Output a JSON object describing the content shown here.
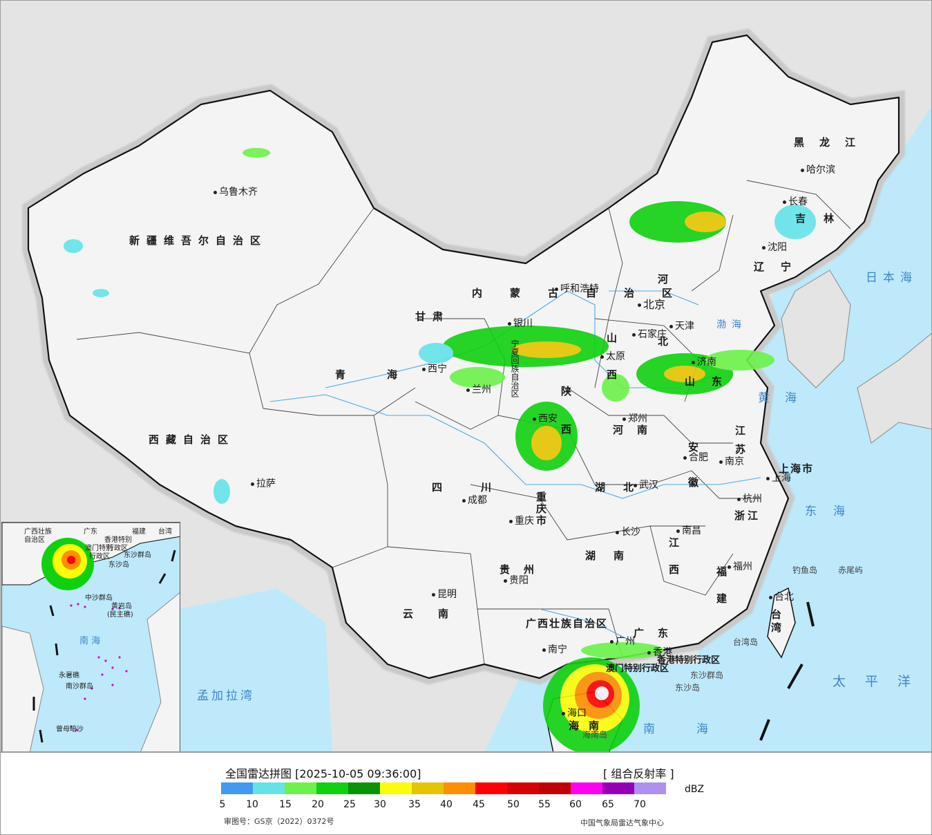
{
  "map": {
    "provinces": [
      {
        "id": "xinjiang",
        "name": "新疆维吾尔自治区"
      },
      {
        "id": "xizang",
        "name": "西藏自治区"
      },
      {
        "id": "qinghai",
        "name": "青海"
      },
      {
        "id": "gansu",
        "name": "甘肃"
      },
      {
        "id": "neimenggu",
        "name": "内蒙古自治区"
      },
      {
        "id": "heilongjiang",
        "name": "黑龙江"
      },
      {
        "id": "jilin",
        "name": "吉林"
      },
      {
        "id": "liaoning",
        "name": "辽宁"
      },
      {
        "id": "hebei",
        "name": "河北"
      },
      {
        "id": "shanxi",
        "name": "山西"
      },
      {
        "id": "shaanxi",
        "name": "陕西"
      },
      {
        "id": "henan",
        "name": "河南"
      },
      {
        "id": "shandong",
        "name": "山东"
      },
      {
        "id": "jiangsu",
        "name": "江苏"
      },
      {
        "id": "anhui",
        "name": "安徽"
      },
      {
        "id": "hubei",
        "name": "湖北"
      },
      {
        "id": "sichuan",
        "name": "四川"
      },
      {
        "id": "chongqing",
        "name": "重庆市"
      },
      {
        "id": "guizhou",
        "name": "贵州"
      },
      {
        "id": "yunnan",
        "name": "云南"
      },
      {
        "id": "hunan",
        "name": "湖南"
      },
      {
        "id": "jiangxi",
        "name": "江西"
      },
      {
        "id": "zhejiang",
        "name": "浙江"
      },
      {
        "id": "fujian",
        "name": "福建"
      },
      {
        "id": "guangxi",
        "name": "广西壮族自治区"
      },
      {
        "id": "guangdong",
        "name": "广东"
      },
      {
        "id": "hainan",
        "name": "海南"
      },
      {
        "id": "taiwan",
        "name": "台湾"
      },
      {
        "id": "shanghai",
        "name": "上海市"
      },
      {
        "id": "hk",
        "name": "香港特别行政区"
      },
      {
        "id": "macau",
        "name": "澳门特别行政区"
      },
      {
        "id": "ningxia",
        "name": "宁夏回族自治区"
      }
    ],
    "cities": [
      {
        "id": "urumqi",
        "name": "乌鲁木齐"
      },
      {
        "id": "lhasa",
        "name": "拉萨"
      },
      {
        "id": "xining",
        "name": "西宁"
      },
      {
        "id": "lanzhou",
        "name": "兰州"
      },
      {
        "id": "yinchuan",
        "name": "银川"
      },
      {
        "id": "hohhot",
        "name": "呼和浩特"
      },
      {
        "id": "harbin",
        "name": "哈尔滨"
      },
      {
        "id": "changchun",
        "name": "长春"
      },
      {
        "id": "shenyang",
        "name": "沈阳"
      },
      {
        "id": "beijing",
        "name": "北京"
      },
      {
        "id": "tianjin",
        "name": "天津"
      },
      {
        "id": "shijiazhuang",
        "name": "石家庄"
      },
      {
        "id": "taiyuan",
        "name": "太原"
      },
      {
        "id": "jinan",
        "name": "济南"
      },
      {
        "id": "xian",
        "name": "西安"
      },
      {
        "id": "zhengzhou",
        "name": "郑州"
      },
      {
        "id": "hefei",
        "name": "合肥"
      },
      {
        "id": "nanjing",
        "name": "南京"
      },
      {
        "id": "shanghai",
        "name": "上海"
      },
      {
        "id": "hangzhou",
        "name": "杭州"
      },
      {
        "id": "wuhan",
        "name": "武汉"
      },
      {
        "id": "chengdu",
        "name": "成都"
      },
      {
        "id": "chongqing",
        "name": "重庆"
      },
      {
        "id": "changsha",
        "name": "长沙"
      },
      {
        "id": "nanchang",
        "name": "南昌"
      },
      {
        "id": "guiyang",
        "name": "贵阳"
      },
      {
        "id": "kunming",
        "name": "昆明"
      },
      {
        "id": "fuzhou",
        "name": "福州"
      },
      {
        "id": "taibei",
        "name": "台北"
      },
      {
        "id": "nanning",
        "name": "南宁"
      },
      {
        "id": "guangzhou",
        "name": "广州"
      },
      {
        "id": "xianggang",
        "name": "香港"
      },
      {
        "id": "haikou",
        "name": "海口"
      }
    ],
    "seas": [
      {
        "id": "japan",
        "name": "日本海"
      },
      {
        "id": "bohai",
        "name": "渤海"
      },
      {
        "id": "yellow",
        "name": "黄海"
      },
      {
        "id": "east",
        "name": "东海"
      },
      {
        "id": "south",
        "name": "南海"
      },
      {
        "id": "pacific",
        "name": "太平洋"
      },
      {
        "id": "bengal",
        "name": "孟加拉湾"
      }
    ],
    "islands": [
      {
        "id": "diaoyu",
        "name": "钓鱼岛"
      },
      {
        "id": "chiwei",
        "name": "赤尾屿"
      },
      {
        "id": "taiwandao",
        "name": "台湾岛"
      },
      {
        "id": "dongsha",
        "name": "东沙群岛"
      },
      {
        "id": "dongshadao",
        "name": "东沙岛"
      },
      {
        "id": "hainandao",
        "name": "海南岛"
      }
    ]
  },
  "inset": {
    "labels": [
      {
        "id": "i_guangxi",
        "text": "广西壮族"
      },
      {
        "id": "i_zizhi",
        "text": "自治区"
      },
      {
        "id": "i_guangdong",
        "text": "广东"
      },
      {
        "id": "i_fujian",
        "text": "福建"
      },
      {
        "id": "i_taiwan",
        "text": "台湾"
      },
      {
        "id": "i_hk",
        "text": "香港特别"
      },
      {
        "id": "i_hk2",
        "text": "行政区"
      },
      {
        "id": "i_macau",
        "text": "澳门特别"
      },
      {
        "id": "i_macau2",
        "text": "行政区"
      },
      {
        "id": "i_dongsha",
        "text": "东沙群岛"
      },
      {
        "id": "i_dongshadao",
        "text": "东沙岛"
      },
      {
        "id": "i_zhongsha",
        "text": "中沙群岛"
      },
      {
        "id": "i_huangyan",
        "text": "黄岩岛"
      },
      {
        "id": "i_minzhu",
        "text": "(民主礁)"
      },
      {
        "id": "i_south",
        "text": "南 海"
      },
      {
        "id": "i_yongshu",
        "text": "永暑礁"
      },
      {
        "id": "i_nansha",
        "text": "南沙群岛"
      },
      {
        "id": "i_zengmu",
        "text": "曾母暗沙"
      }
    ]
  },
  "legend": {
    "title": "全国雷达拼图 [2025-10-05 09:36:00]",
    "product": "[ 组合反射率 ]",
    "unit": "dBZ",
    "ticks": [
      "5",
      "10",
      "15",
      "20",
      "25",
      "30",
      "35",
      "40",
      "45",
      "50",
      "55",
      "60",
      "65",
      "70"
    ],
    "colors": [
      "#409bf0",
      "#63e3e8",
      "#6cf24a",
      "#0fd10f",
      "#079407",
      "#fcfc08",
      "#e5c400",
      "#ff8f00",
      "#fe0000",
      "#d60000",
      "#c00000",
      "#ff00f0",
      "#9500b5",
      "#ad90f0"
    ],
    "approval": "审图号：GS京（2022）0372号",
    "center": "中国气象局雷达气象中心"
  },
  "colors": {
    "sea": "#bde9fb",
    "land": "#f4f4f4",
    "outside": "#e4e4e4",
    "border": "#111111",
    "river": "#4aa8e8"
  }
}
